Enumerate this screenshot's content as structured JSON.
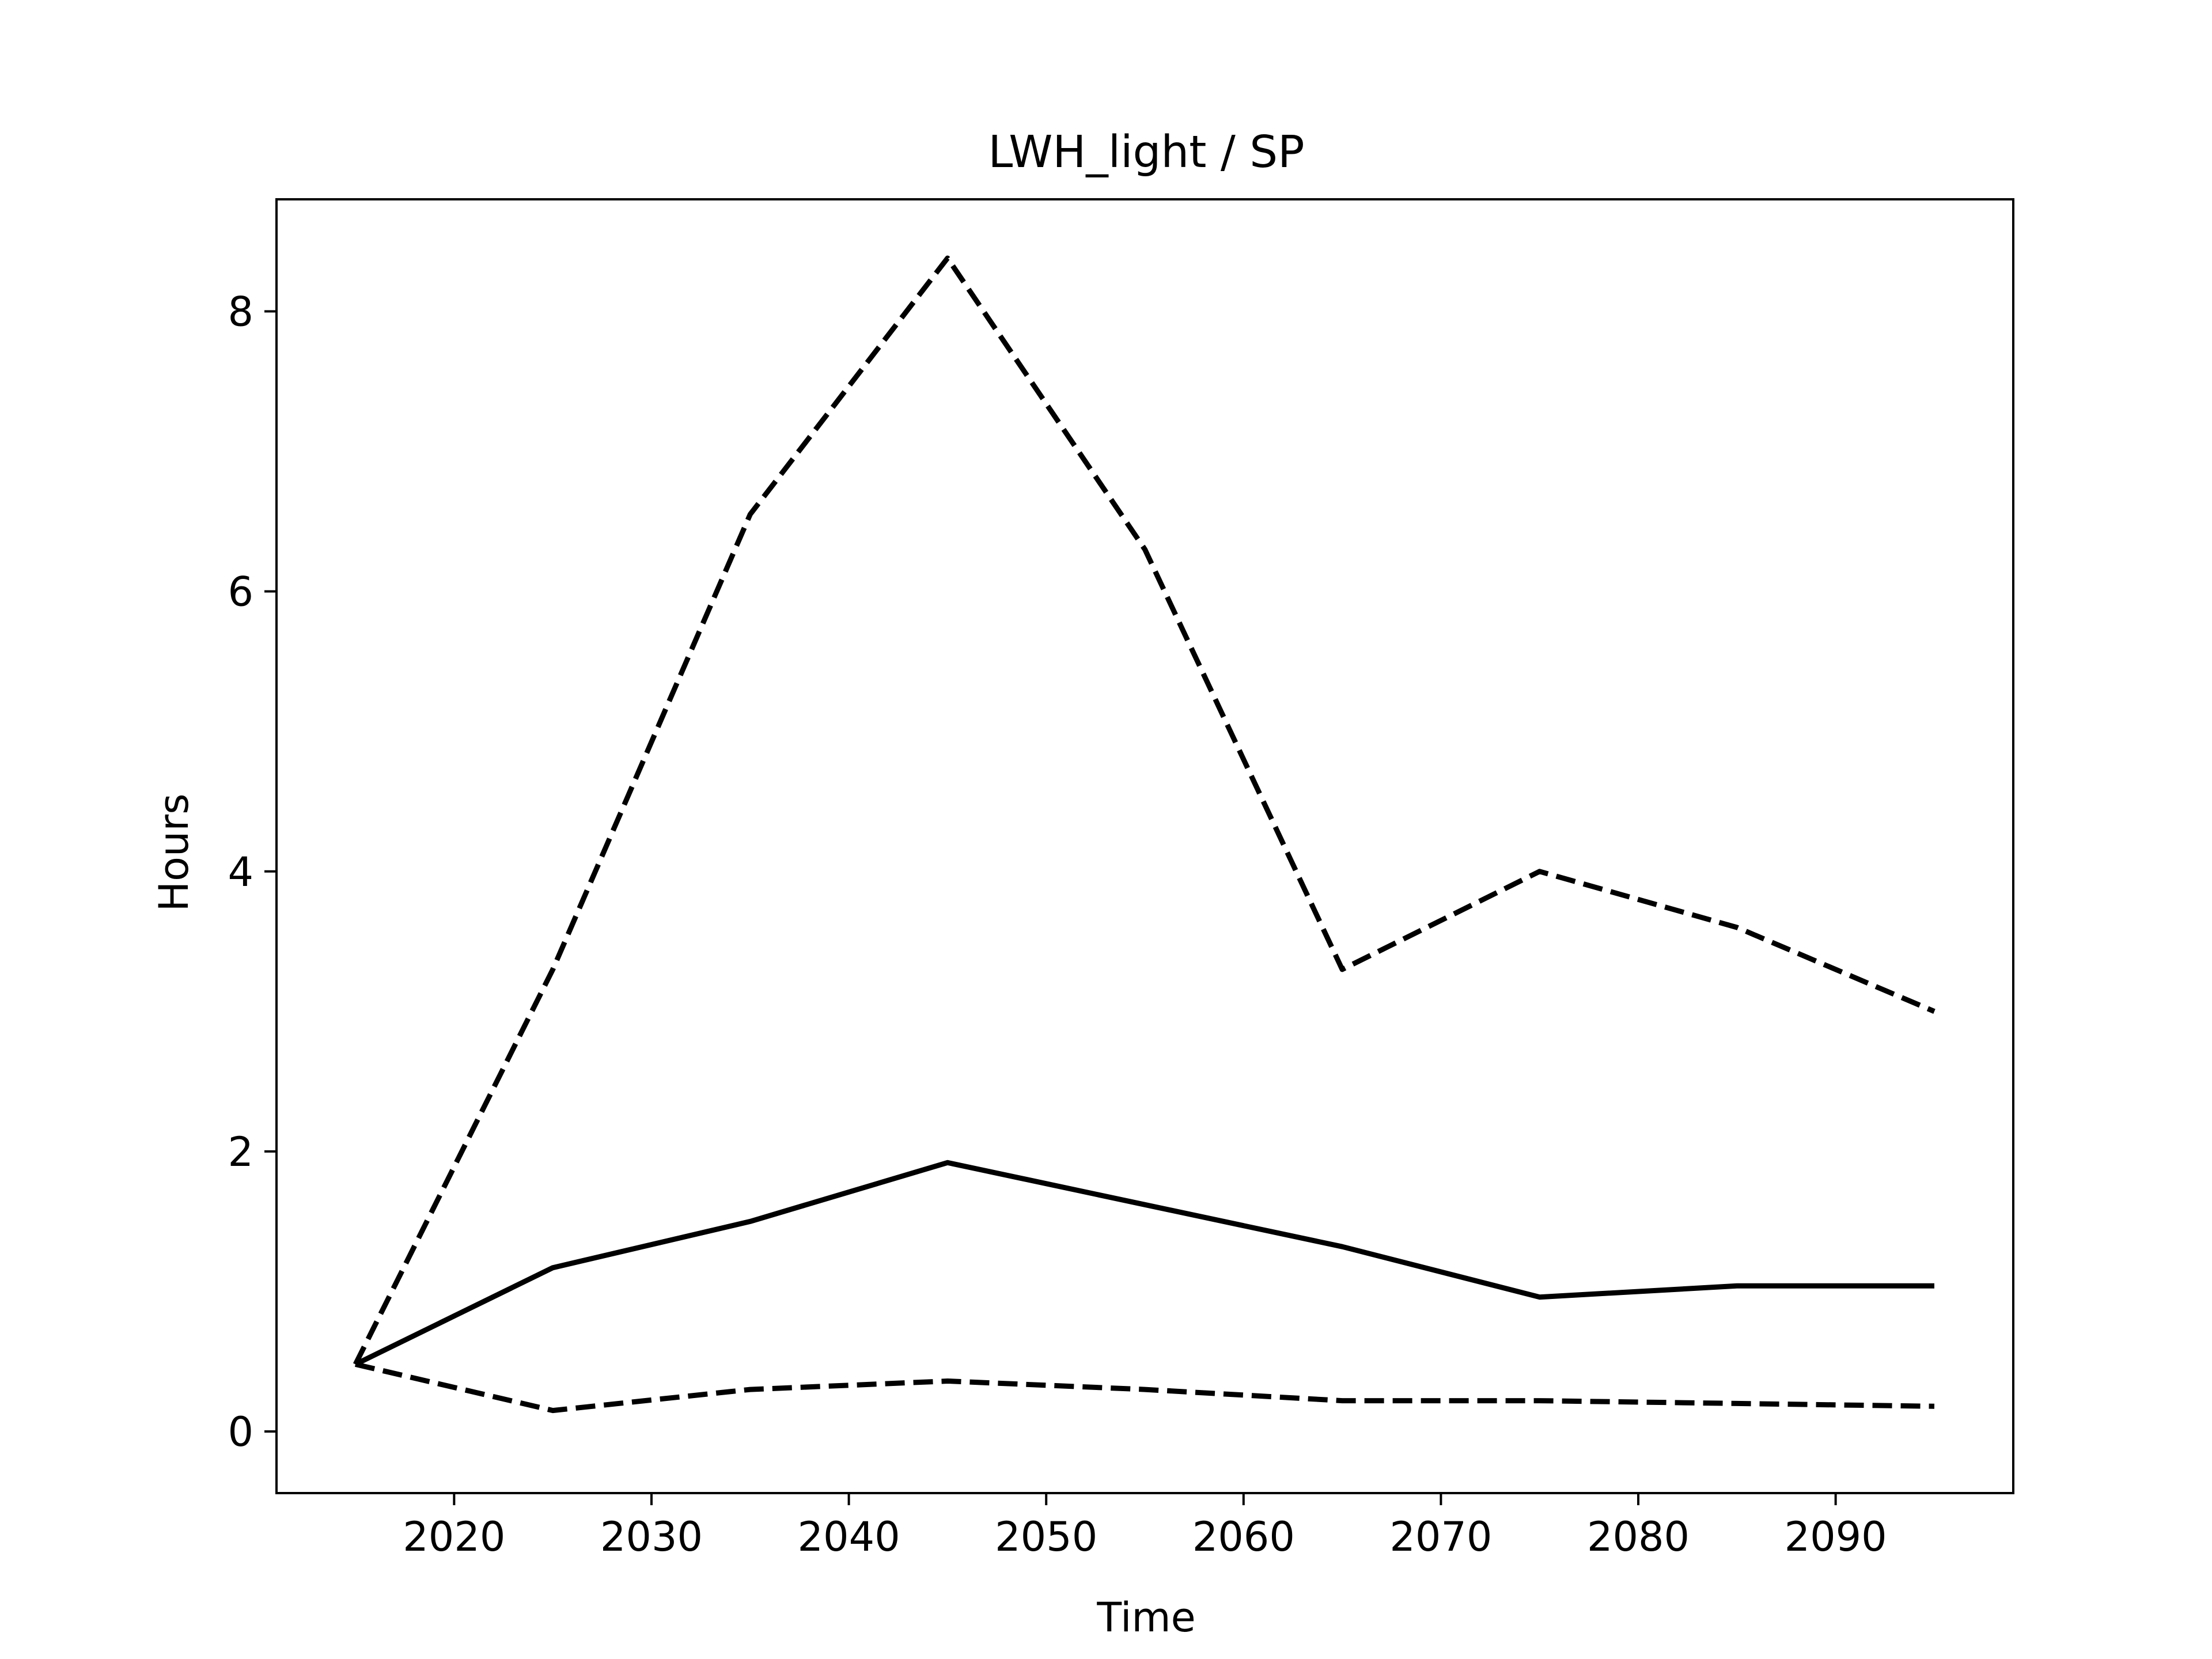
{
  "chart_data": {
    "type": "line",
    "title": "LWH_light / SP",
    "xlabel": "Time",
    "ylabel": "Hours",
    "xlim": [
      2011,
      2099
    ],
    "ylim": [
      -0.44,
      8.8
    ],
    "grid": false,
    "x": [
      2015,
      2025,
      2035,
      2045,
      2055,
      2065,
      2075,
      2085,
      2095
    ],
    "x_ticks": [
      2020,
      2030,
      2040,
      2050,
      2060,
      2070,
      2080,
      2090
    ],
    "x_tick_labels": [
      "2020",
      "2030",
      "2040",
      "2050",
      "2060",
      "2070",
      "2080",
      "2090"
    ],
    "y_ticks": [
      0,
      2,
      4,
      6,
      8
    ],
    "y_tick_labels": [
      "0",
      "2",
      "4",
      "6",
      "8"
    ],
    "line_color": "#000000",
    "series": [
      {
        "style": "dashed",
        "values": [
          0.48,
          3.3,
          6.55,
          8.38,
          6.3,
          3.3,
          4.0,
          3.6,
          3.0
        ]
      },
      {
        "style": "solid",
        "values": [
          0.48,
          1.17,
          1.5,
          1.92,
          1.62,
          1.32,
          0.96,
          1.04,
          1.04
        ]
      },
      {
        "style": "dashed",
        "values": [
          0.48,
          0.15,
          0.3,
          0.36,
          0.3,
          0.22,
          0.22,
          0.2,
          0.18
        ]
      }
    ]
  }
}
